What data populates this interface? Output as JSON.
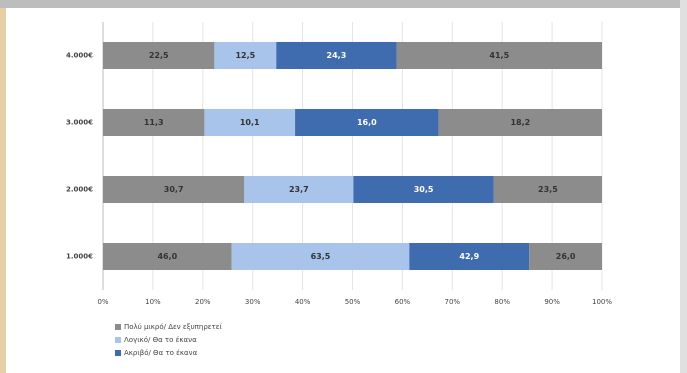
{
  "chart_data": {
    "type": "stacked-bar-100",
    "categories": [
      "4.000€",
      "3.000€",
      "2.000€",
      "1.000€"
    ],
    "series": [
      {
        "name": "Πολύ μικρό/ Δεν εξυπηρετεί",
        "color": "#8c8c8c",
        "values": [
          22.5,
          11.3,
          30.7,
          46.0
        ],
        "value_labels": [
          "22,5",
          "11,3",
          "30,7",
          "46,0"
        ]
      },
      {
        "name": "Λογικό/ Θα το έκανα",
        "color": "#a8c4ea",
        "values": [
          12.5,
          10.1,
          23.7,
          63.5
        ],
        "value_labels": [
          "12,5",
          "10,1",
          "23,7",
          "63,5"
        ]
      },
      {
        "name": "Ακριβό/ Θα το έκανα",
        "color": "#3f6cae",
        "values": [
          24.3,
          16.0,
          30.5,
          42.9
        ],
        "value_labels": [
          "24,3",
          "16,0",
          "30,5",
          "42,9"
        ]
      },
      {
        "color": "#8c8c8c",
        "values": [
          41.5,
          18.2,
          23.5,
          26.0
        ],
        "value_labels": [
          "41,5",
          "18,2",
          "23,5",
          "26,0"
        ]
      }
    ],
    "xlim": [
      0,
      100
    ],
    "xticks": [
      {
        "value": 0,
        "label": "0%"
      },
      {
        "value": 10,
        "label": "10%"
      },
      {
        "value": 20,
        "label": "20%"
      },
      {
        "value": 30,
        "label": "30%"
      },
      {
        "value": 40,
        "label": "40%"
      },
      {
        "value": 50,
        "label": "50%"
      },
      {
        "value": 60,
        "label": "60%"
      },
      {
        "value": 70,
        "label": "70%"
      },
      {
        "value": 80,
        "label": "80%"
      },
      {
        "value": 90,
        "label": "90%"
      },
      {
        "value": 100,
        "label": "100%"
      }
    ],
    "grid": true
  }
}
